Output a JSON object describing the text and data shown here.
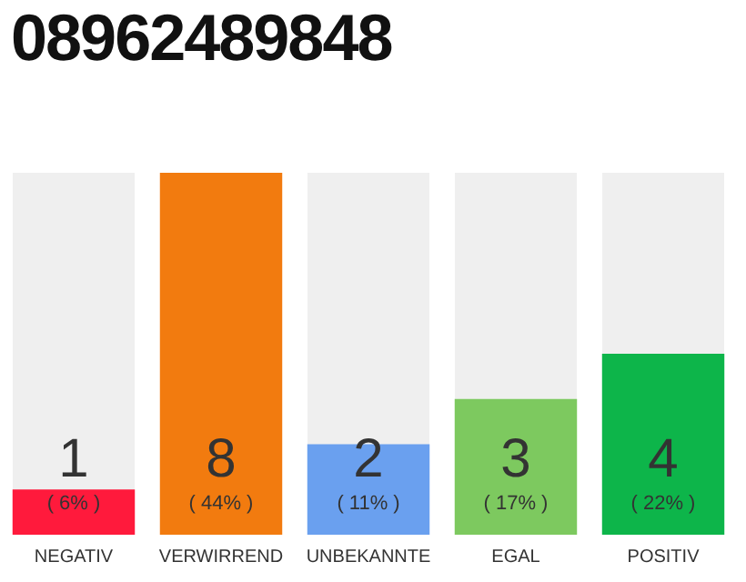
{
  "chart_data": {
    "type": "bar",
    "title": "08962489848",
    "categories": [
      "NEGATIV",
      "VERWIRREND",
      "UNBEKANNTE",
      "EGAL",
      "POSITIV"
    ],
    "values": [
      1,
      8,
      2,
      3,
      4
    ],
    "colors": [
      "#ff1a3c",
      "#f27b0f",
      "#6aa0ef",
      "#7dc95f",
      "#0db54a"
    ],
    "data_labels": true,
    "annotations": [
      {
        "text": "( 6% )",
        "x": "NEGATIV",
        "y": 0
      },
      {
        "text": "( 44% )",
        "x": "VERWIRREND",
        "y": 0
      },
      {
        "text": "( 11% )",
        "x": "UNBEKANNTE",
        "y": 0
      },
      {
        "text": "( 17% )",
        "x": "EGAL",
        "y": 0
      },
      {
        "text": "( 22% )",
        "x": "POSITIV",
        "y": 0
      }
    ],
    "grid": false,
    "legend": false
  }
}
